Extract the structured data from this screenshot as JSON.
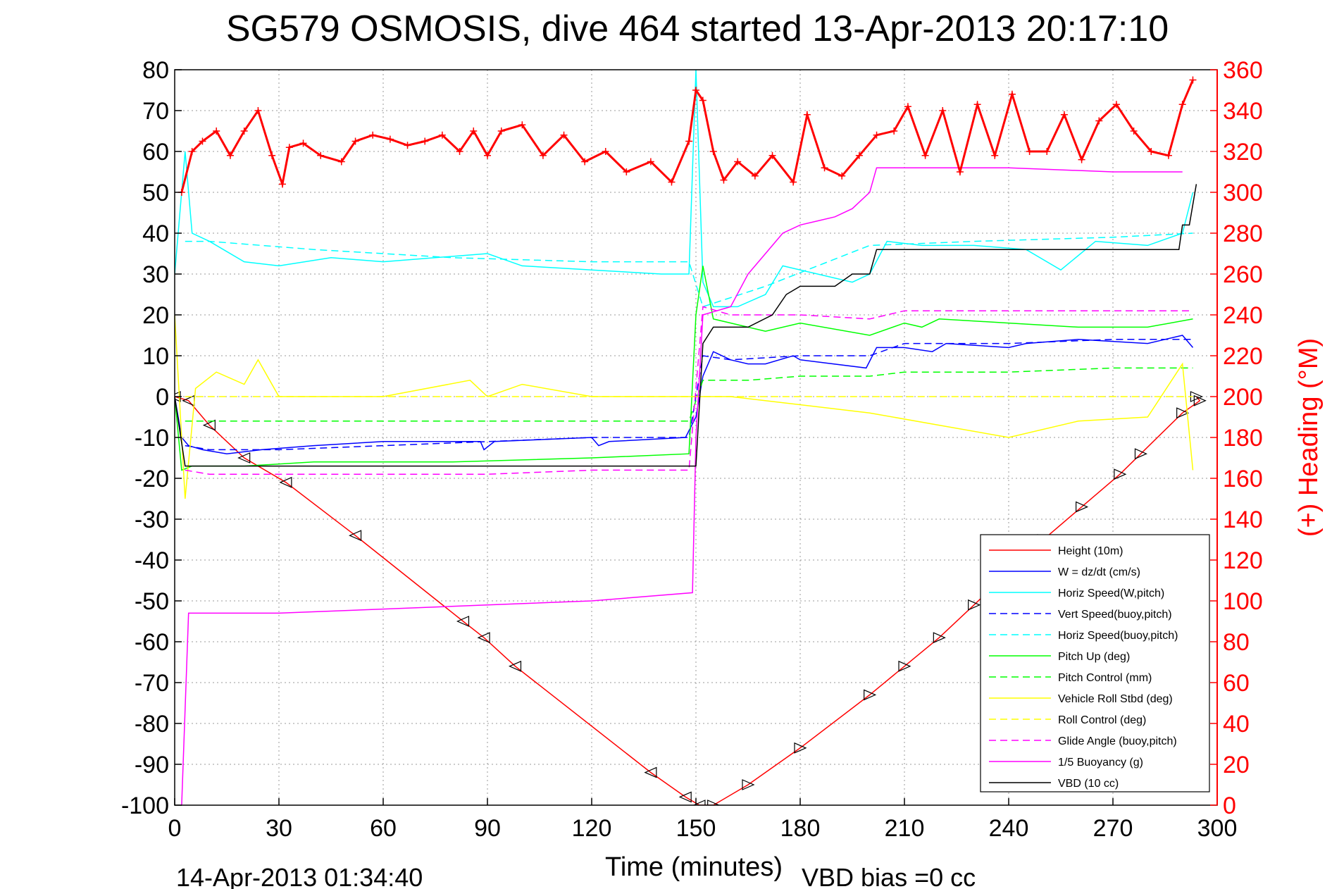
{
  "chart_data": {
    "type": "line",
    "title": "SG579 OSMOSIS, dive 464 started 13-Apr-2013 20:17:10",
    "xlabel": "Time (minutes)",
    "ylabel_right": "(+) Heading (°M)",
    "xlim": [
      0,
      300
    ],
    "ylim": [
      -100,
      80
    ],
    "ylim_right": [
      0,
      360
    ],
    "x_ticks": [
      0,
      30,
      60,
      90,
      120,
      150,
      180,
      210,
      240,
      270,
      300
    ],
    "y_ticks": [
      -100,
      -90,
      -80,
      -70,
      -60,
      -50,
      -40,
      -30,
      -20,
      -10,
      0,
      10,
      20,
      30,
      40,
      50,
      60,
      70,
      80
    ],
    "y_ticks_right": [
      0,
      20,
      40,
      60,
      80,
      100,
      120,
      140,
      160,
      180,
      200,
      220,
      240,
      260,
      280,
      300,
      320,
      340,
      360
    ],
    "grid": true,
    "legend_position": "bottom-right",
    "footer_left": "14-Apr-2013 01:34:40",
    "footer_right": "VBD bias =0 cc",
    "series": [
      {
        "name": "Height (10m)",
        "color": "#ff0000",
        "style": "solid",
        "x": [
          0,
          4,
          10,
          20,
          32,
          52,
          83,
          89,
          98,
          137,
          147,
          151,
          155,
          165,
          180,
          200,
          210,
          220,
          230,
          240,
          250,
          261,
          272,
          278,
          290,
          295,
          294
        ],
        "y": [
          0,
          -1,
          -7,
          -15,
          -21,
          -34,
          -55,
          -59,
          -66,
          -92,
          -98,
          -100,
          -100,
          -95,
          -86,
          -73,
          -66,
          -59,
          -51,
          -43,
          -35,
          -27,
          -19,
          -14,
          -4,
          -1,
          0
        ]
      },
      {
        "name": "W = dz/dt (cm/s)",
        "color": "#0000ff",
        "style": "solid",
        "x": [
          0,
          2,
          4,
          8,
          15,
          25,
          40,
          60,
          88,
          89,
          92,
          120,
          122,
          125,
          147,
          150,
          152,
          155,
          160,
          165,
          170,
          178,
          180,
          199,
          202,
          210,
          218,
          222,
          240,
          245,
          260,
          280,
          290,
          293
        ],
        "y": [
          0,
          -10,
          -12,
          -13,
          -14,
          -13,
          -12,
          -11,
          -11,
          -13,
          -11,
          -10,
          -12,
          -11,
          -10,
          -5,
          5,
          11,
          9,
          8,
          8,
          10,
          9,
          7,
          12,
          12,
          11,
          13,
          12,
          13,
          14,
          13,
          15,
          12
        ]
      },
      {
        "name": "Horiz Speed(W,pitch)",
        "color": "#00ffff",
        "style": "solid",
        "x": [
          0,
          3,
          5,
          10,
          20,
          30,
          45,
          60,
          75,
          90,
          100,
          120,
          140,
          148,
          150,
          152,
          155,
          162,
          170,
          175,
          185,
          195,
          200,
          205,
          215,
          230,
          245,
          255,
          265,
          280,
          290,
          293
        ],
        "y": [
          30,
          60,
          40,
          38,
          33,
          32,
          34,
          33,
          34,
          35,
          32,
          31,
          30,
          30,
          80,
          28,
          22,
          22,
          25,
          32,
          30,
          28,
          30,
          38,
          37,
          37,
          36,
          31,
          38,
          37,
          40,
          50
        ]
      },
      {
        "name": "Vert Speed(buoy,pitch)",
        "color": "#0000ff",
        "style": "dashed",
        "x": [
          3,
          10,
          30,
          60,
          90,
          120,
          148,
          152,
          160,
          180,
          200,
          210,
          240,
          270,
          293
        ],
        "y": [
          -12,
          -13,
          -13,
          -12,
          -11,
          -10,
          -10,
          10,
          9,
          10,
          10,
          13,
          13,
          14,
          14
        ]
      },
      {
        "name": "Horiz Speed(buoy,pitch)",
        "color": "#00ffff",
        "style": "dashed",
        "x": [
          3,
          10,
          40,
          80,
          120,
          148,
          152,
          170,
          200,
          230,
          270,
          293
        ],
        "y": [
          38,
          38,
          36,
          34,
          33,
          33,
          22,
          27,
          37,
          38,
          39,
          40
        ]
      },
      {
        "name": "Pitch Up (deg)",
        "color": "#00ff00",
        "style": "solid",
        "x": [
          0,
          2,
          5,
          10,
          20,
          40,
          80,
          120,
          148,
          150,
          152,
          155,
          170,
          180,
          200,
          210,
          215,
          220,
          240,
          260,
          280,
          293
        ],
        "y": [
          0,
          -18,
          -17,
          -17,
          -17,
          -16,
          -16,
          -15,
          -14,
          20,
          32,
          19,
          16,
          18,
          15,
          18,
          17,
          19,
          18,
          17,
          17,
          19
        ]
      },
      {
        "name": "Pitch Control (mm)",
        "color": "#00ff00",
        "style": "dashed",
        "x": [
          3,
          30,
          60,
          90,
          120,
          148,
          152,
          165,
          180,
          200,
          210,
          240,
          270,
          293
        ],
        "y": [
          -6,
          -6,
          -6,
          -6,
          -6,
          -6,
          4,
          4,
          5,
          5,
          6,
          6,
          7,
          7
        ]
      },
      {
        "name": "Vehicle Roll Stbd (deg)",
        "color": "#ffff00",
        "style": "solid",
        "x": [
          0,
          3,
          6,
          12,
          20,
          24,
          30,
          60,
          85,
          90,
          100,
          120,
          150,
          160,
          200,
          220,
          240,
          260,
          280,
          290,
          293
        ],
        "y": [
          20,
          -25,
          2,
          6,
          3,
          9,
          0,
          0,
          4,
          0,
          3,
          0,
          0,
          0,
          -4,
          -7,
          -10,
          -6,
          -5,
          8,
          -18
        ]
      },
      {
        "name": "Roll Control (deg)",
        "color": "#ffff00",
        "style": "dashed",
        "x": [
          3,
          150,
          293
        ],
        "y": [
          0,
          0,
          0
        ]
      },
      {
        "name": "Glide Angle (buoy,pitch)",
        "color": "#ff00ff",
        "style": "dashed",
        "x": [
          3,
          10,
          30,
          60,
          90,
          120,
          148,
          152,
          160,
          180,
          200,
          210,
          240,
          270,
          293
        ],
        "y": [
          -18,
          -19,
          -19,
          -19,
          -19,
          -18,
          -18,
          22,
          20,
          20,
          19,
          21,
          21,
          21,
          21
        ]
      },
      {
        "name": "1/5 Buoyancy (g)",
        "color": "#ff00ff",
        "style": "solid",
        "x": [
          2,
          4,
          30,
          60,
          90,
          120,
          149,
          150,
          152,
          160,
          165,
          170,
          175,
          180,
          185,
          190,
          195,
          200,
          202,
          210,
          240,
          270,
          290
        ],
        "y": [
          -100,
          -53,
          -53,
          -52,
          -51,
          -50,
          -48,
          -10,
          20,
          22,
          30,
          35,
          40,
          42,
          43,
          44,
          46,
          50,
          56,
          56,
          56,
          55,
          55
        ]
      },
      {
        "name": "VBD (10 cc)",
        "color": "#000000",
        "style": "solid",
        "x": [
          0,
          3,
          30,
          60,
          90,
          120,
          150,
          152,
          155,
          165,
          172,
          176,
          180,
          184,
          190,
          195,
          200,
          202,
          220,
          250,
          280,
          289,
          290,
          292,
          294
        ],
        "y": [
          0,
          -17,
          -17,
          -17,
          -17,
          -17,
          -17,
          13,
          17,
          17,
          20,
          25,
          27,
          27,
          27,
          30,
          30,
          36,
          36,
          36,
          36,
          36,
          42,
          42,
          52
        ]
      },
      {
        "name": "Heading (°M)",
        "color": "#ff0000",
        "style": "plus-markers",
        "axis": "right",
        "x": [
          2,
          5,
          8,
          12,
          16,
          20,
          24,
          28,
          31,
          33,
          37,
          42,
          48,
          52,
          57,
          62,
          67,
          72,
          77,
          82,
          86,
          90,
          94,
          100,
          106,
          112,
          118,
          124,
          130,
          137,
          143,
          148,
          150,
          152,
          155,
          158,
          162,
          167,
          172,
          178,
          182,
          187,
          192,
          197,
          202,
          207,
          211,
          216,
          221,
          226,
          231,
          236,
          241,
          246,
          251,
          256,
          261,
          266,
          271,
          276,
          281,
          286,
          290,
          293
        ],
        "y": [
          300,
          320,
          325,
          330,
          318,
          330,
          340,
          318,
          304,
          322,
          324,
          318,
          315,
          325,
          328,
          326,
          323,
          325,
          328,
          320,
          330,
          318,
          330,
          333,
          318,
          328,
          315,
          320,
          310,
          315,
          305,
          325,
          350,
          345,
          320,
          306,
          315,
          308,
          318,
          305,
          338,
          312,
          308,
          318,
          328,
          330,
          342,
          318,
          340,
          310,
          343,
          318,
          348,
          320,
          320,
          338,
          316,
          335,
          343,
          330,
          320,
          318,
          343,
          355
        ]
      }
    ]
  }
}
